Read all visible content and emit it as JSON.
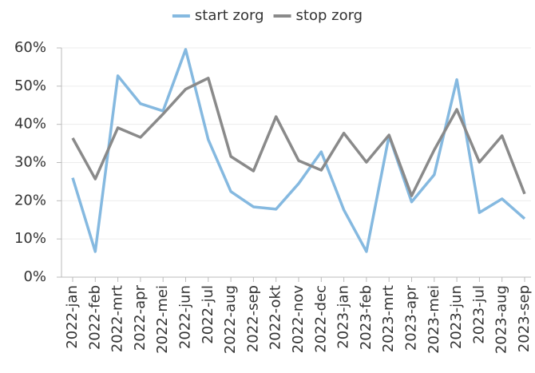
{
  "chart_data": {
    "type": "line",
    "categories": [
      "2022-jan",
      "2022-feb",
      "2022-mrt",
      "2022-apr",
      "2022-mei",
      "2022-jun",
      "2022-jul",
      "2022-aug",
      "2022-sep",
      "2022-okt",
      "2022-nov",
      "2022-dec",
      "2023-jan",
      "2023-feb",
      "2023-mrt",
      "2023-apr",
      "2023-mei",
      "2023-jun",
      "2023-jul",
      "2023-aug",
      "2023-sep"
    ],
    "series": [
      {
        "name": "start zorg",
        "color": "#85b9e0",
        "values": [
          26,
          6.7,
          52.7,
          45.4,
          43.5,
          59.6,
          36,
          22.4,
          18.4,
          17.8,
          24.5,
          32.8,
          17.6,
          6.7,
          37,
          19.7,
          26.8,
          51.7,
          16.9,
          20.5,
          15.3
        ]
      },
      {
        "name": "stop zorg",
        "color": "#8a8a8a",
        "values": [
          36.4,
          25.7,
          39.1,
          36.6,
          42.7,
          49.2,
          52.1,
          31.6,
          27.8,
          42,
          30.5,
          28,
          37.7,
          30.1,
          37.2,
          21.3,
          33.3,
          43.9,
          30.1,
          37,
          21.8
        ]
      }
    ],
    "ylim": [
      0,
      60
    ],
    "yticks": [
      {
        "value": 0,
        "label": "0%"
      },
      {
        "value": 10,
        "label": "10%"
      },
      {
        "value": 20,
        "label": "20%"
      },
      {
        "value": 30,
        "label": "30%"
      },
      {
        "value": 40,
        "label": "40%"
      },
      {
        "value": 50,
        "label": "50%"
      },
      {
        "value": 60,
        "label": "60%"
      }
    ],
    "grid": true,
    "legend": "top"
  }
}
